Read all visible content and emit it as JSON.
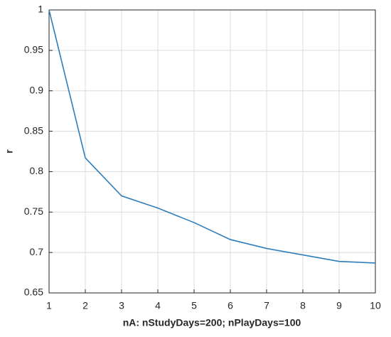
{
  "chart_data": {
    "type": "line",
    "xlabel": "nA: nStudyDays=200; nPlayDays=100",
    "ylabel": "r",
    "x": [
      1,
      2,
      3,
      4,
      5,
      6,
      7,
      8,
      9,
      10
    ],
    "series": [
      {
        "color": "#2e7ebc",
        "values": [
          1.0,
          0.817,
          0.77,
          0.755,
          0.737,
          0.716,
          0.705,
          0.697,
          0.689,
          0.687
        ]
      }
    ],
    "xlim": [
      1,
      10
    ],
    "xticks": [
      1,
      2,
      3,
      4,
      5,
      6,
      7,
      8,
      9,
      10
    ],
    "ylim": [
      0.65,
      1
    ],
    "yticks": [
      0.65,
      0.7,
      0.75,
      0.8,
      0.85,
      0.9,
      0.95,
      1
    ],
    "grid": true
  }
}
